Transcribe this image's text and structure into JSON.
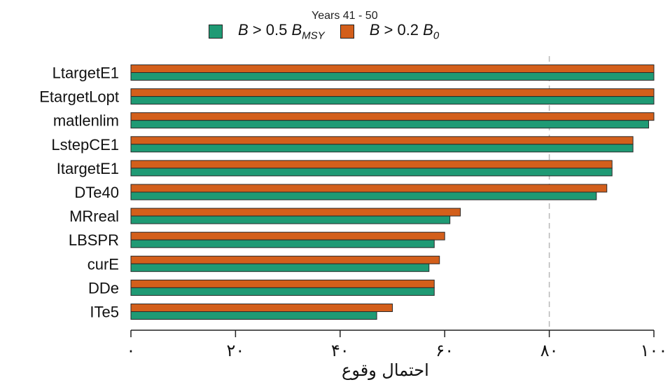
{
  "chart_data": {
    "type": "bar",
    "orientation": "horizontal",
    "title": "Years 41 - 50",
    "xlabel": "احتمال وقوع",
    "ylabel": "",
    "xlim": [
      0,
      100
    ],
    "reference_line": 80,
    "categories": [
      "LtargetE1",
      "EtargetLopt",
      "matlenlim",
      "LstepCE1",
      "ItargetE1",
      "DTe40",
      "MRreal",
      "LBSPR",
      "curE",
      "DDe",
      "ITe5"
    ],
    "series": [
      {
        "name": "B > 0.2 B0",
        "color": "#d35f1b",
        "values": [
          100,
          100,
          100,
          96,
          92,
          91,
          63,
          60,
          59,
          58,
          50
        ]
      },
      {
        "name": "B > 0.5 BMSY",
        "color": "#1f9a74",
        "values": [
          100,
          100,
          99,
          96,
          92,
          89,
          61,
          58,
          57,
          58,
          47
        ]
      }
    ],
    "xticks": [
      {
        "value": 0,
        "label": "٠"
      },
      {
        "value": 20,
        "label": "٢٠"
      },
      {
        "value": 40,
        "label": "۴٠"
      },
      {
        "value": 60,
        "label": "۶٠"
      },
      {
        "value": 80,
        "label": "٨٠"
      },
      {
        "value": 100,
        "label": "١٠٠"
      }
    ],
    "legend": {
      "position": "top",
      "items": [
        {
          "color": "#1f9a74",
          "var": "B",
          "op": " > ",
          "num": "0.5",
          "sym": "B",
          "sub": "MSY"
        },
        {
          "color": "#d35f1b",
          "var": "B",
          "op": " > ",
          "num": "0.2",
          "sym": "B",
          "sub": "0"
        }
      ]
    }
  }
}
